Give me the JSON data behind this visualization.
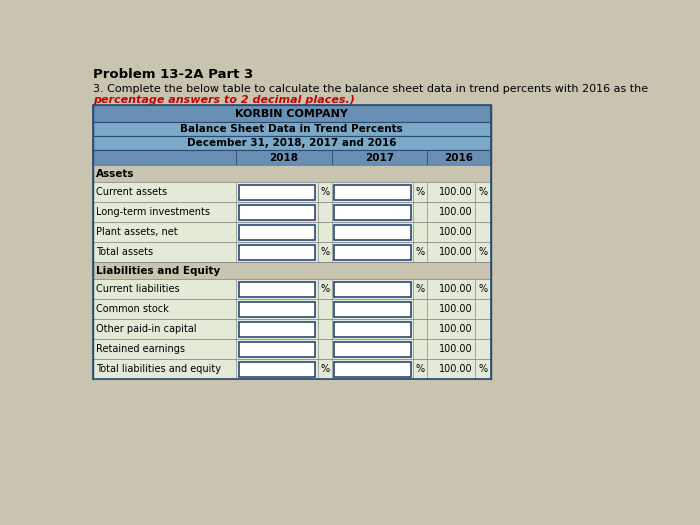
{
  "problem_header": "Problem 13-2A Part 3",
  "instruction": "3. Complete the below table to calculate the balance sheet data in trend percents with 2016 as the",
  "instruction2": "percentage answers to 2 decimal places.)",
  "title1": "KORBIN COMPANY",
  "title2": "Balance Sheet Data in Trend Percents",
  "title3": "December 31, 2018, 2017 and 2016",
  "rows": [
    {
      "label": "Current assets",
      "pct_2018": "%",
      "pct_2017": "%",
      "val_2016": "100.00",
      "pct_2016": "%"
    },
    {
      "label": "Long-term investments",
      "pct_2018": "",
      "pct_2017": "",
      "val_2016": "100.00",
      "pct_2016": ""
    },
    {
      "label": "Plant assets, net",
      "pct_2018": "",
      "pct_2017": "",
      "val_2016": "100.00",
      "pct_2016": ""
    },
    {
      "label": "Total assets",
      "pct_2018": "%",
      "pct_2017": "%",
      "val_2016": "100.00",
      "pct_2016": "%"
    },
    {
      "label": "Current liabilities",
      "pct_2018": "%",
      "pct_2017": "%",
      "val_2016": "100.00",
      "pct_2016": "%"
    },
    {
      "label": "Common stock",
      "pct_2018": "",
      "pct_2017": "",
      "val_2016": "100.00",
      "pct_2016": ""
    },
    {
      "label": "Other paid-in capital",
      "pct_2018": "",
      "pct_2017": "",
      "val_2016": "100.00",
      "pct_2016": ""
    },
    {
      "label": "Retained earnings",
      "pct_2018": "",
      "pct_2017": "",
      "val_2016": "100.00",
      "pct_2016": ""
    },
    {
      "label": "Total liabilities and equity",
      "pct_2018": "%",
      "pct_2017": "%",
      "val_2016": "100.00",
      "pct_2016": "%"
    }
  ],
  "body_bg": "#c8c4b0",
  "header_bg": "#6a8fb5",
  "header_bg2": "#7aaac8",
  "year_row_bg": "#7aaac8",
  "section_bg": "#c8c4b0",
  "row_bg_even": "#dde8d0",
  "row_bg_odd": "#e8ede0",
  "border_dark": "#2a4a70",
  "border_light": "#888888",
  "input_border": "#1a3a6b",
  "input_bg": "#ffffff",
  "text_black": "#000000",
  "text_red": "#cc0000"
}
